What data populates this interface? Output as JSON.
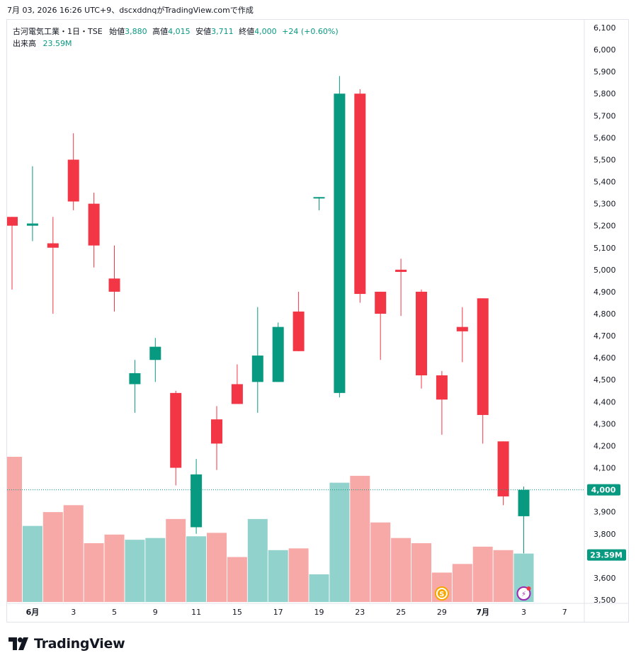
{
  "header": {
    "text": "7月 03, 2026 16:26 UTC+9、dscxddnqがTradingView.comで作成"
  },
  "legend": {
    "symbol": "古河電気工業・1日・TSE",
    "open_label": "始値",
    "open": "3,880",
    "high_label": "高値",
    "high": "4,015",
    "low_label": "安値",
    "low": "3,711",
    "close_label": "終値",
    "close": "4,000",
    "change": "+24 (+0.60%)",
    "volume_label": "出来高",
    "volume": "23.59M"
  },
  "price_tag": "4,000",
  "volume_tag": "23.59M",
  "footer": {
    "brand": "TradingView"
  },
  "colors": {
    "up": "#089981",
    "down": "#f23645",
    "vol_up": "#92d2cc",
    "vol_down": "#f7a9a7"
  },
  "chart_data": {
    "type": "candlestick",
    "y_ticks": [
      "3,500",
      "3,600",
      "3,700",
      "3,800",
      "3,900",
      "4,000",
      "4,100",
      "4,200",
      "4,300",
      "4,400",
      "4,500",
      "4,600",
      "4,700",
      "4,800",
      "4,900",
      "5,000",
      "5,100",
      "5,200",
      "5,300",
      "5,400",
      "5,500",
      "5,600",
      "5,700",
      "5,800",
      "5,900",
      "6,000",
      "6,100"
    ],
    "y_range": [
      3500,
      6100
    ],
    "x_labels": [
      {
        "label": "6月",
        "bar": 1,
        "bold": true
      },
      {
        "label": "3",
        "bar": 3
      },
      {
        "label": "5",
        "bar": 5
      },
      {
        "label": "9",
        "bar": 7
      },
      {
        "label": "11",
        "bar": 9
      },
      {
        "label": "15",
        "bar": 11
      },
      {
        "label": "17",
        "bar": 13
      },
      {
        "label": "19",
        "bar": 15
      },
      {
        "label": "23",
        "bar": 17
      },
      {
        "label": "25",
        "bar": 19
      },
      {
        "label": "29",
        "bar": 21
      },
      {
        "label": "7月",
        "bar": 23,
        "bold": true
      },
      {
        "label": "3",
        "bar": 25
      },
      {
        "label": "7",
        "bar": 27
      }
    ],
    "candles": [
      {
        "o": 5240,
        "h": 5240,
        "l": 4910,
        "c": 5200,
        "v": 0.84
      },
      {
        "o": 5200,
        "h": 5470,
        "l": 5130,
        "c": 5210,
        "v": 0.44
      },
      {
        "o": 5120,
        "h": 5240,
        "l": 4800,
        "c": 5100,
        "v": 0.52
      },
      {
        "o": 5500,
        "h": 5620,
        "l": 5270,
        "c": 5310,
        "v": 0.56
      },
      {
        "o": 5300,
        "h": 5350,
        "l": 5010,
        "c": 5110,
        "v": 0.34
      },
      {
        "o": 4960,
        "h": 5110,
        "l": 4810,
        "c": 4900,
        "v": 0.39
      },
      {
        "o": 4480,
        "h": 4590,
        "l": 4350,
        "c": 4530,
        "v": 0.36
      },
      {
        "o": 4590,
        "h": 4690,
        "l": 4490,
        "c": 4650,
        "v": 0.37
      },
      {
        "o": 4440,
        "h": 4450,
        "l": 4020,
        "c": 4100,
        "v": 0.48
      },
      {
        "o": 3830,
        "h": 4140,
        "l": 3800,
        "c": 4070,
        "v": 0.38
      },
      {
        "o": 4320,
        "h": 4380,
        "l": 4090,
        "c": 4210,
        "v": 0.4
      },
      {
        "o": 4480,
        "h": 4570,
        "l": 4390,
        "c": 4390,
        "v": 0.26
      },
      {
        "o": 4490,
        "h": 4830,
        "l": 4350,
        "c": 4610,
        "v": 0.48
      },
      {
        "o": 4490,
        "h": 4760,
        "l": 4490,
        "c": 4740,
        "v": 0.3
      },
      {
        "o": 4810,
        "h": 4900,
        "l": 4630,
        "c": 4630,
        "v": 0.31
      },
      {
        "o": 5330,
        "h": 5330,
        "l": 5270,
        "c": 5330,
        "v": 0.16
      },
      {
        "o": 4440,
        "h": 5880,
        "l": 4420,
        "c": 5800,
        "v": 0.69
      },
      {
        "o": 5800,
        "h": 5820,
        "l": 4850,
        "c": 4890,
        "v": 0.73
      },
      {
        "o": 4900,
        "h": 4900,
        "l": 4590,
        "c": 4800,
        "v": 0.46
      },
      {
        "o": 5000,
        "h": 5050,
        "l": 4790,
        "c": 4990,
        "v": 0.37
      },
      {
        "o": 4900,
        "h": 4910,
        "l": 4460,
        "c": 4520,
        "v": 0.34
      },
      {
        "o": 4520,
        "h": 4540,
        "l": 4250,
        "c": 4410,
        "v": 0.17
      },
      {
        "o": 4740,
        "h": 4830,
        "l": 4580,
        "c": 4720,
        "v": 0.22
      },
      {
        "o": 4870,
        "h": 4870,
        "l": 4210,
        "c": 4340,
        "v": 0.32
      },
      {
        "o": 4220,
        "h": 4220,
        "l": 3930,
        "c": 3970,
        "v": 0.3
      },
      {
        "o": 3880,
        "h": 4015,
        "l": 3711,
        "c": 4000,
        "v": 0.28
      }
    ],
    "volume_ylim": [
      0,
      0.84
    ],
    "last_price_line": 4000,
    "markers": [
      {
        "bar": 21,
        "type": "dividend",
        "label": "S"
      },
      {
        "bar": 25,
        "type": "earnings",
        "label": "⚡"
      }
    ]
  }
}
